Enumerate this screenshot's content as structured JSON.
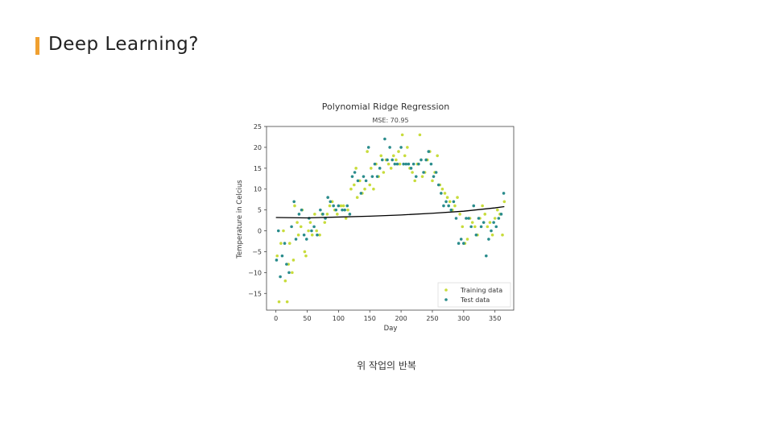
{
  "slide": {
    "title": "Deep Learning?",
    "caption": "위 작업의 반복"
  },
  "colors": {
    "accent": "#f0a030",
    "training": "#c8dc3c",
    "test": "#2a8c8c",
    "fit_line": "#000000"
  },
  "chart_data": {
    "type": "scatter",
    "title": "Polynomial Ridge Regression",
    "subtitle": "MSE: 70.95",
    "xlabel": "Day",
    "ylabel": "Temperature in Celcius",
    "xlim": [
      -15,
      380
    ],
    "ylim": [
      -19,
      25
    ],
    "xticks": [
      0,
      50,
      100,
      150,
      200,
      250,
      300,
      350
    ],
    "yticks": [
      -15,
      -10,
      -5,
      0,
      5,
      10,
      15,
      20,
      25
    ],
    "legend": "bottom-right",
    "grid": false,
    "series": [
      {
        "name": "Training data",
        "type": "scatter",
        "points": [
          [
            2,
            -6
          ],
          [
            5,
            -17
          ],
          [
            8,
            -3
          ],
          [
            12,
            0
          ],
          [
            15,
            -12
          ],
          [
            18,
            -17
          ],
          [
            20,
            -8
          ],
          [
            22,
            -3
          ],
          [
            26,
            -10
          ],
          [
            28,
            -7
          ],
          [
            30,
            6
          ],
          [
            34,
            2
          ],
          [
            36,
            -1
          ],
          [
            40,
            1
          ],
          [
            42,
            5
          ],
          [
            46,
            -5
          ],
          [
            48,
            -6
          ],
          [
            52,
            0
          ],
          [
            55,
            2
          ],
          [
            58,
            -1
          ],
          [
            62,
            4
          ],
          [
            65,
            0
          ],
          [
            70,
            -1
          ],
          [
            74,
            4
          ],
          [
            78,
            2
          ],
          [
            82,
            4
          ],
          [
            86,
            6
          ],
          [
            90,
            7
          ],
          [
            94,
            5
          ],
          [
            98,
            4
          ],
          [
            104,
            6
          ],
          [
            108,
            6
          ],
          [
            112,
            3
          ],
          [
            115,
            5
          ],
          [
            120,
            10
          ],
          [
            125,
            11
          ],
          [
            128,
            15
          ],
          [
            130,
            8
          ],
          [
            134,
            12
          ],
          [
            138,
            9
          ],
          [
            142,
            10
          ],
          [
            146,
            19
          ],
          [
            150,
            11
          ],
          [
            152,
            15
          ],
          [
            156,
            10
          ],
          [
            160,
            16
          ],
          [
            164,
            13
          ],
          [
            168,
            18
          ],
          [
            172,
            14
          ],
          [
            176,
            17
          ],
          [
            180,
            16
          ],
          [
            184,
            15
          ],
          [
            188,
            18
          ],
          [
            192,
            17
          ],
          [
            196,
            19
          ],
          [
            198,
            16
          ],
          [
            202,
            23
          ],
          [
            206,
            18
          ],
          [
            210,
            20
          ],
          [
            214,
            15
          ],
          [
            218,
            14
          ],
          [
            222,
            12
          ],
          [
            226,
            16
          ],
          [
            230,
            23
          ],
          [
            234,
            13
          ],
          [
            238,
            14
          ],
          [
            242,
            17
          ],
          [
            246,
            19
          ],
          [
            250,
            12
          ],
          [
            254,
            14
          ],
          [
            258,
            18
          ],
          [
            262,
            11
          ],
          [
            266,
            10
          ],
          [
            270,
            9
          ],
          [
            274,
            8
          ],
          [
            278,
            7
          ],
          [
            282,
            5
          ],
          [
            286,
            6
          ],
          [
            290,
            8
          ],
          [
            294,
            4
          ],
          [
            298,
            1
          ],
          [
            302,
            -3
          ],
          [
            306,
            -2
          ],
          [
            310,
            3
          ],
          [
            314,
            2
          ],
          [
            318,
            1
          ],
          [
            322,
            -1
          ],
          [
            326,
            3
          ],
          [
            330,
            6
          ],
          [
            334,
            4
          ],
          [
            338,
            1
          ],
          [
            342,
            2
          ],
          [
            346,
            -1
          ],
          [
            350,
            3
          ],
          [
            354,
            5
          ],
          [
            358,
            4
          ],
          [
            362,
            -1
          ],
          [
            365,
            7
          ]
        ]
      },
      {
        "name": "Test data",
        "type": "scatter",
        "points": [
          [
            1,
            -7
          ],
          [
            4,
            0
          ],
          [
            7,
            -11
          ],
          [
            10,
            -6
          ],
          [
            14,
            -3
          ],
          [
            17,
            -8
          ],
          [
            21,
            -10
          ],
          [
            25,
            1
          ],
          [
            29,
            7
          ],
          [
            32,
            -2
          ],
          [
            37,
            4
          ],
          [
            41,
            5
          ],
          [
            45,
            -1
          ],
          [
            49,
            -2
          ],
          [
            53,
            3
          ],
          [
            57,
            0
          ],
          [
            61,
            1
          ],
          [
            66,
            -1
          ],
          [
            71,
            5
          ],
          [
            75,
            4
          ],
          [
            79,
            3
          ],
          [
            83,
            8
          ],
          [
            87,
            7
          ],
          [
            92,
            6
          ],
          [
            96,
            5
          ],
          [
            100,
            6
          ],
          [
            106,
            5
          ],
          [
            110,
            5
          ],
          [
            114,
            6
          ],
          [
            118,
            4
          ],
          [
            122,
            13
          ],
          [
            126,
            14
          ],
          [
            131,
            12
          ],
          [
            136,
            9
          ],
          [
            140,
            13
          ],
          [
            144,
            12
          ],
          [
            148,
            20
          ],
          [
            154,
            13
          ],
          [
            158,
            16
          ],
          [
            162,
            13
          ],
          [
            166,
            15
          ],
          [
            170,
            17
          ],
          [
            174,
            22
          ],
          [
            178,
            17
          ],
          [
            182,
            20
          ],
          [
            186,
            17
          ],
          [
            190,
            16
          ],
          [
            194,
            16
          ],
          [
            200,
            20
          ],
          [
            204,
            16
          ],
          [
            208,
            16
          ],
          [
            212,
            16
          ],
          [
            216,
            15
          ],
          [
            220,
            16
          ],
          [
            224,
            13
          ],
          [
            228,
            16
          ],
          [
            232,
            17
          ],
          [
            236,
            14
          ],
          [
            240,
            17
          ],
          [
            244,
            19
          ],
          [
            248,
            16
          ],
          [
            252,
            13
          ],
          [
            256,
            14
          ],
          [
            260,
            11
          ],
          [
            264,
            9
          ],
          [
            268,
            6
          ],
          [
            272,
            7
          ],
          [
            276,
            6
          ],
          [
            280,
            5
          ],
          [
            284,
            7
          ],
          [
            288,
            3
          ],
          [
            292,
            -3
          ],
          [
            296,
            -2
          ],
          [
            300,
            -3
          ],
          [
            304,
            3
          ],
          [
            308,
            3
          ],
          [
            312,
            1
          ],
          [
            316,
            6
          ],
          [
            320,
            -1
          ],
          [
            324,
            3
          ],
          [
            328,
            1
          ],
          [
            332,
            2
          ],
          [
            336,
            -6
          ],
          [
            340,
            -2
          ],
          [
            344,
            0
          ],
          [
            348,
            2
          ],
          [
            352,
            1
          ],
          [
            356,
            3
          ],
          [
            360,
            4
          ],
          [
            364,
            9
          ]
        ]
      },
      {
        "name": "",
        "type": "line",
        "x": [
          0,
          50,
          100,
          150,
          200,
          250,
          300,
          350,
          365
        ],
        "y": [
          3.2,
          3.1,
          3.3,
          3.5,
          3.8,
          4.2,
          4.7,
          5.5,
          5.8
        ]
      }
    ]
  }
}
